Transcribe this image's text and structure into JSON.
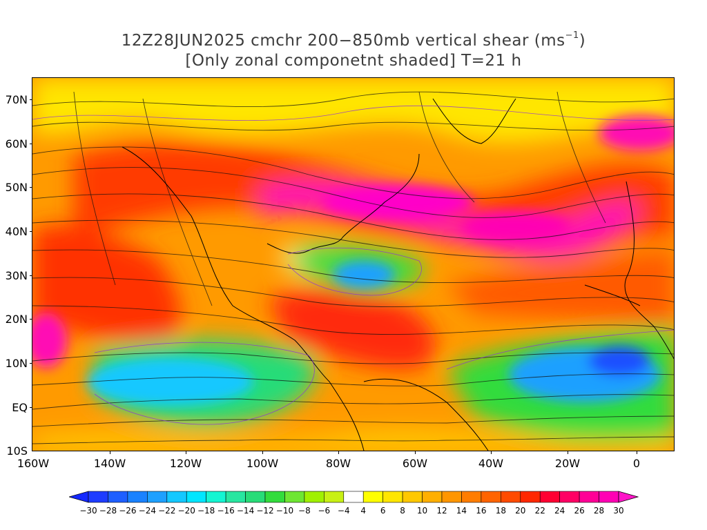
{
  "title": {
    "line1_pre": "12Z28JUN2025 cmchr 200−850mb vertical shear (ms",
    "line1_sup": "−1",
    "line1_post": ")",
    "line2": "[Only zonal componetnt shaded] T=21 h"
  },
  "axes": {
    "lat_labels": [
      "70N",
      "60N",
      "50N",
      "40N",
      "30N",
      "20N",
      "10N",
      "EQ",
      "10S"
    ],
    "lon_labels": [
      "160W",
      "140W",
      "120W",
      "100W",
      "80W",
      "60W",
      "40W",
      "20W",
      "0"
    ]
  },
  "colorbar": {
    "labels": [
      "−30",
      "−28",
      "−26",
      "−24",
      "−22",
      "−20",
      "−18",
      "−16",
      "−14",
      "−12",
      "−10",
      "−8",
      "−6",
      "−4",
      "4",
      "6",
      "8",
      "10",
      "12",
      "14",
      "16",
      "18",
      "20",
      "22",
      "24",
      "26",
      "28",
      "30"
    ],
    "colors": [
      "#1e3cff",
      "#1e5fff",
      "#1a82ff",
      "#1ea0ff",
      "#14c8ff",
      "#00e6ff",
      "#14f5d2",
      "#28e6a0",
      "#28dc78",
      "#32dc3c",
      "#6ee632",
      "#a0f000",
      "#c8f014",
      "#ffffff",
      "#ffff00",
      "#ffe600",
      "#ffc800",
      "#ffaf00",
      "#ff9600",
      "#ff7d00",
      "#ff6400",
      "#ff4b00",
      "#ff2800",
      "#ff0032",
      "#ff0064",
      "#ff0096",
      "#ff00b4"
    ],
    "under_color": "#1428ff",
    "over_color": "#ff14c8"
  }
}
